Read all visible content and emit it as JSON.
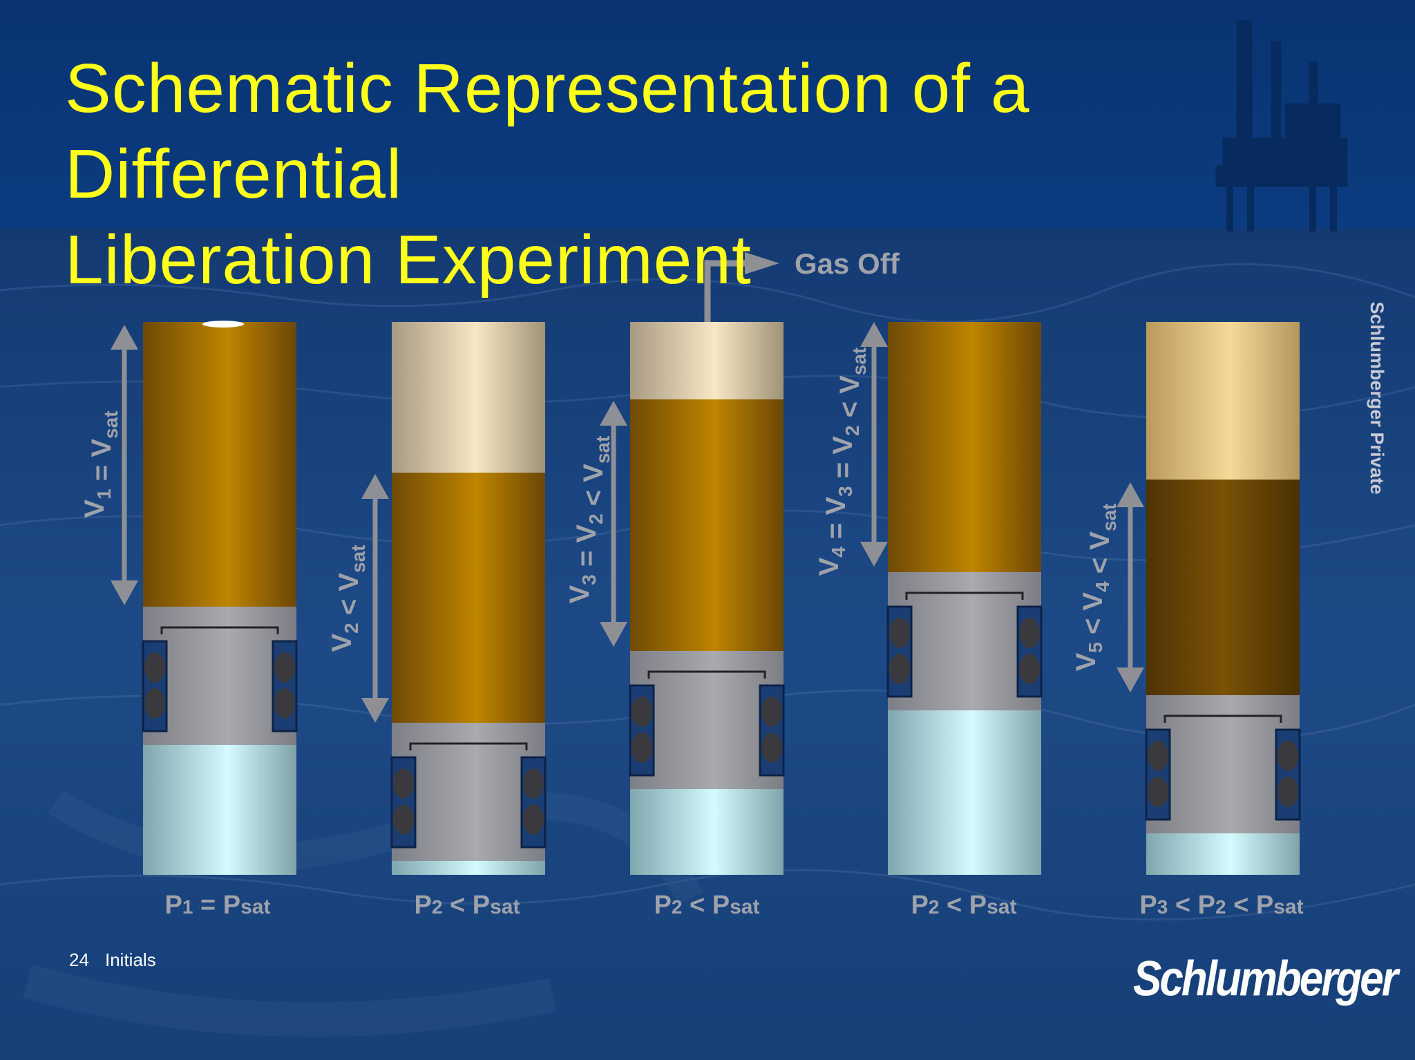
{
  "slide": {
    "title_line1": "Schematic Representation of a Differential",
    "title_line2": "Liberation Experiment",
    "page_number": "24",
    "initials": "Initials",
    "classification": "Schlumberger Private",
    "logo_text": "Schlumberger"
  },
  "diagram": {
    "gas_off_label": "Gas Off",
    "colors": {
      "oil": "#a56e00",
      "gas": "#efdcb4",
      "mercury": "#bfeff4",
      "piston": "#9a9aa0",
      "arrow": "#8e9096",
      "label": "#9fa2ab"
    },
    "cells": [
      {
        "volume_label": {
          "main": "V",
          "sub1": "1",
          "mid": " = V",
          "sub2": "sat"
        },
        "pressure_label": {
          "p": "P",
          "n": "1",
          "rel": " = P",
          "sat": "sat"
        }
      },
      {
        "volume_label": {
          "main": "V",
          "sub1": "2",
          "mid": " < V",
          "sub2": "sat"
        },
        "pressure_label": {
          "p": "P",
          "n": "2",
          "rel": " < P",
          "sat": "sat"
        }
      },
      {
        "volume_label": {
          "main": "V",
          "sub1": "3",
          "mid": " = V",
          "sub2": "2",
          "mid2": " < V",
          "sub3": "sat"
        },
        "pressure_label": {
          "p": "P",
          "n": "2",
          "rel": " < P",
          "sat": "sat"
        }
      },
      {
        "volume_label": {
          "main": "V",
          "sub1": "4",
          "mid": " = V",
          "sub2": "3",
          "mid2": " = V",
          "sub3": "2",
          "mid3": " < V",
          "sub4": "sat"
        },
        "pressure_label": {
          "p": "P",
          "n": "2",
          "rel": " < P",
          "sat": "sat"
        }
      },
      {
        "volume_label": {
          "main": "V",
          "sub1": "5",
          "mid": " < V",
          "sub2": "4",
          "mid2": " < V",
          "sub3": "sat"
        },
        "pressure_label": {
          "p": "P",
          "n": "3",
          "rel": " < P",
          "n2": "2",
          "rel2": " < P",
          "sat": "sat"
        }
      }
    ]
  }
}
